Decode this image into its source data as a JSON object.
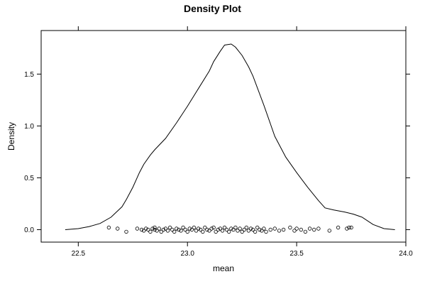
{
  "chart_data": {
    "type": "line",
    "title": "Density Plot",
    "xlabel": "mean",
    "ylabel": "Density",
    "xlim": [
      22.33,
      24.0
    ],
    "ylim": [
      -0.12,
      1.92
    ],
    "x_ticks": [
      {
        "value": 22.5,
        "label": "22.5"
      },
      {
        "value": 23.0,
        "label": "23.0"
      },
      {
        "value": 23.5,
        "label": "23.5"
      },
      {
        "value": 24.0,
        "label": "24.0"
      }
    ],
    "y_ticks": [
      {
        "value": 0.0,
        "label": "0.0"
      },
      {
        "value": 0.5,
        "label": "0.5"
      },
      {
        "value": 1.0,
        "label": "1.0"
      },
      {
        "value": 1.5,
        "label": "1.5"
      }
    ],
    "grid": false,
    "series": [
      {
        "kind": "density-line",
        "x": [
          22.44,
          22.5,
          22.55,
          22.6,
          22.65,
          22.7,
          22.72,
          22.75,
          22.78,
          22.8,
          22.83,
          22.85,
          22.9,
          22.95,
          23.0,
          23.05,
          23.1,
          23.12,
          23.15,
          23.17,
          23.2,
          23.22,
          23.25,
          23.28,
          23.3,
          23.35,
          23.4,
          23.45,
          23.5,
          23.55,
          23.6,
          23.63,
          23.67,
          23.72,
          23.76,
          23.8,
          23.85,
          23.9,
          23.95
        ],
        "y": [
          0.0,
          0.01,
          0.03,
          0.06,
          0.12,
          0.22,
          0.29,
          0.41,
          0.55,
          0.63,
          0.72,
          0.77,
          0.88,
          1.03,
          1.19,
          1.36,
          1.53,
          1.62,
          1.72,
          1.78,
          1.79,
          1.76,
          1.68,
          1.57,
          1.48,
          1.2,
          0.9,
          0.7,
          0.55,
          0.41,
          0.28,
          0.21,
          0.19,
          0.17,
          0.15,
          0.12,
          0.05,
          0.01,
          0.0
        ]
      },
      {
        "kind": "rug-points",
        "x": [
          22.64,
          22.68,
          22.72,
          22.77,
          22.79,
          22.8,
          22.81,
          22.82,
          22.83,
          22.84,
          22.85,
          22.85,
          22.86,
          22.87,
          22.88,
          22.89,
          22.9,
          22.91,
          22.92,
          22.93,
          22.94,
          22.95,
          22.96,
          22.97,
          22.98,
          22.99,
          23.0,
          23.01,
          23.02,
          23.03,
          23.04,
          23.05,
          23.06,
          23.07,
          23.08,
          23.09,
          23.1,
          23.11,
          23.12,
          23.13,
          23.14,
          23.15,
          23.16,
          23.17,
          23.18,
          23.19,
          23.2,
          23.21,
          23.22,
          23.23,
          23.24,
          23.25,
          23.26,
          23.27,
          23.28,
          23.29,
          23.3,
          23.31,
          23.32,
          23.33,
          23.34,
          23.35,
          23.36,
          23.38,
          23.4,
          23.42,
          23.44,
          23.47,
          23.49,
          23.5,
          23.52,
          23.54,
          23.56,
          23.58,
          23.6,
          23.65,
          23.69,
          23.73,
          23.74,
          23.75
        ],
        "y": [
          0.02,
          0.01,
          -0.02,
          0.01,
          0.0,
          -0.01,
          0.01,
          0.0,
          -0.02,
          0.01,
          0.0,
          0.02,
          -0.01,
          0.01,
          -0.02,
          0.0,
          0.01,
          -0.01,
          0.02,
          0.0,
          -0.02,
          0.01,
          0.0,
          -0.01,
          0.02,
          0.0,
          -0.02,
          0.01,
          0.0,
          0.02,
          -0.01,
          0.01,
          0.0,
          -0.02,
          0.02,
          0.0,
          -0.01,
          0.01,
          0.02,
          -0.02,
          0.0,
          0.01,
          -0.01,
          0.02,
          0.0,
          -0.02,
          0.01,
          0.0,
          0.02,
          -0.01,
          0.01,
          -0.02,
          0.0,
          0.02,
          -0.01,
          0.01,
          0.0,
          -0.02,
          0.02,
          0.0,
          -0.01,
          0.01,
          -0.02,
          0.0,
          0.01,
          -0.01,
          0.0,
          0.02,
          -0.01,
          0.01,
          0.0,
          -0.02,
          0.01,
          0.0,
          0.01,
          -0.01,
          0.02,
          0.01,
          0.02,
          0.02
        ]
      }
    ]
  }
}
